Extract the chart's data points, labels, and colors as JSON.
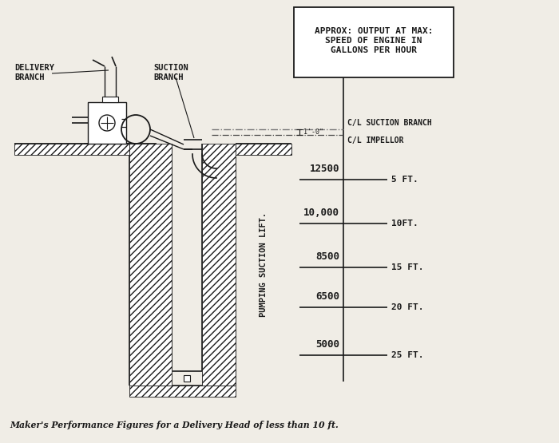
{
  "bg_color": "#f0ede6",
  "line_color": "#1a1a1a",
  "box_text": "APPROX: OUTPUT AT MAX:\nSPEED OF ENGINE IN\nGALLONS PER HOUR",
  "cl_labels": [
    "C/L SUCTION BRANCH",
    "C/L IMPELLOR"
  ],
  "depth_values": [
    "12500",
    "10,000",
    "8500",
    "6500",
    "5000"
  ],
  "depth_ft": [
    "5 FT.",
    "10FT.",
    "15 FT.",
    "20 FT.",
    "25 FT."
  ],
  "label_delivery": "DELIVERY\nBRANCH",
  "label_suction": "SUCTION\nBRANCH",
  "label_pumping": "PUMPING SUCTION LIFT.",
  "caption": "Maker's Performance Figures for a Delivery Head of less than 10 ft."
}
